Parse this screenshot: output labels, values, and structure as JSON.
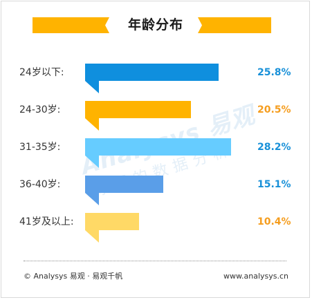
{
  "colors": {
    "banner": "#ffb300",
    "blue_dark": "#0f8fde",
    "blue_light": "#66ccff",
    "blue_mid": "#5a9ee8",
    "gold": "#ffb300",
    "gold_light": "#ffd966",
    "value_blue": "#1890d8",
    "value_orange": "#f59d1e"
  },
  "watermark": {
    "brand": "Analysys 易观",
    "tagline": "你要的数据分析"
  },
  "footer": {
    "left": "© Analysys 易观 · 易观千帆",
    "right": "www.analysys.cn"
  },
  "chart_data": {
    "type": "bar",
    "orientation": "horizontal",
    "title": "年龄分布",
    "categories": [
      "24岁以下:",
      "24-30岁:",
      "31-35岁:",
      "36-40岁:",
      "41岁及以上:"
    ],
    "values": [
      25.8,
      20.5,
      28.2,
      15.1,
      10.4
    ],
    "value_labels": [
      "25.8%",
      "20.5%",
      "28.2%",
      "15.1%",
      "10.4%"
    ],
    "unit": "%",
    "bar_colors": [
      "#0f8fde",
      "#ffb300",
      "#66ccff",
      "#5a9ee8",
      "#ffd966"
    ],
    "label_colors": [
      "#1890d8",
      "#f59d1e",
      "#1890d8",
      "#1890d8",
      "#f59d1e"
    ],
    "xlim": [
      0,
      28.2
    ],
    "grid": false,
    "legend": "none"
  }
}
